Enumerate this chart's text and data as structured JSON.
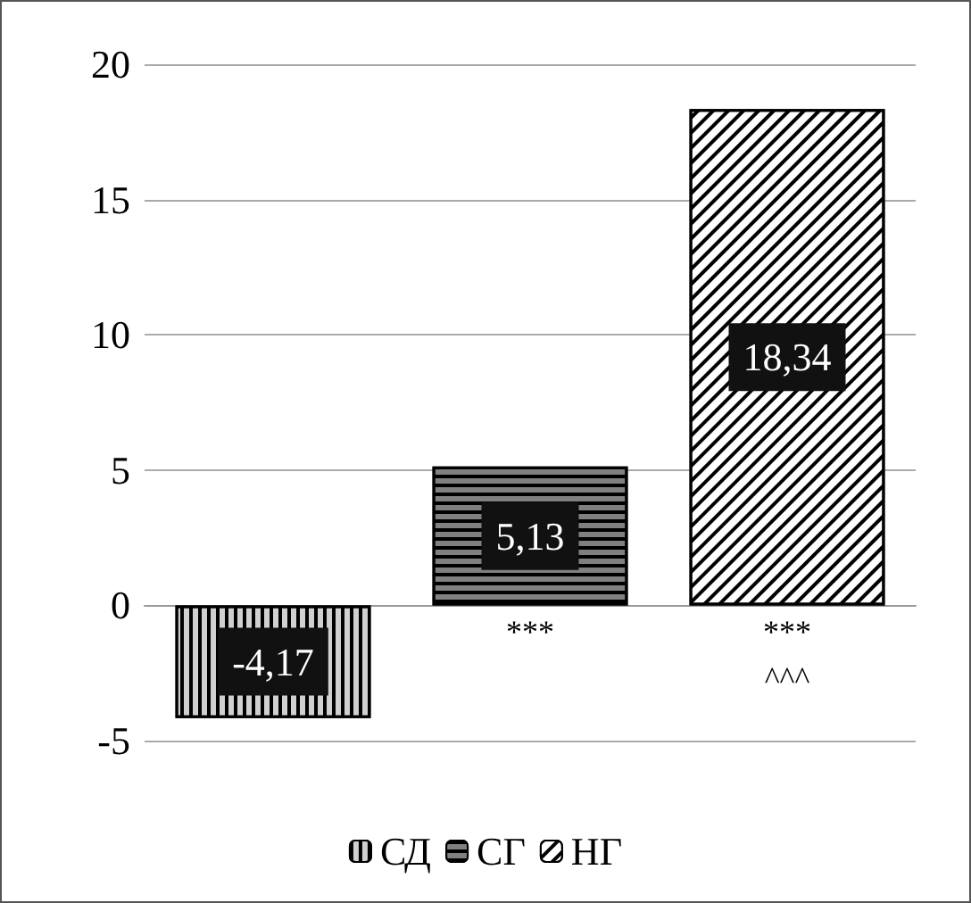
{
  "chart_data": {
    "type": "bar",
    "categories": [
      null,
      null,
      null
    ],
    "series": [
      {
        "name": "СД",
        "color": "#d0d0d0",
        "values": [
          -4.17,
          null,
          null
        ],
        "value_labels": [
          "-4,17",
          null,
          null
        ]
      },
      {
        "name": "СГ",
        "color": "#808080",
        "values": [
          null,
          5.13,
          null
        ],
        "value_labels": [
          null,
          "5,13",
          null
        ]
      },
      {
        "name": "НГ",
        "color": "#ffffff",
        "values": [
          null,
          null,
          18.34
        ],
        "value_labels": [
          null,
          null,
          "18,34"
        ]
      }
    ],
    "ylim": [
      -5,
      20
    ],
    "yticks": [
      -5,
      0,
      5,
      10,
      15,
      20
    ],
    "grid": "y",
    "legend": "bottom",
    "annotations": [
      "***",
      "***",
      "^^^"
    ]
  }
}
